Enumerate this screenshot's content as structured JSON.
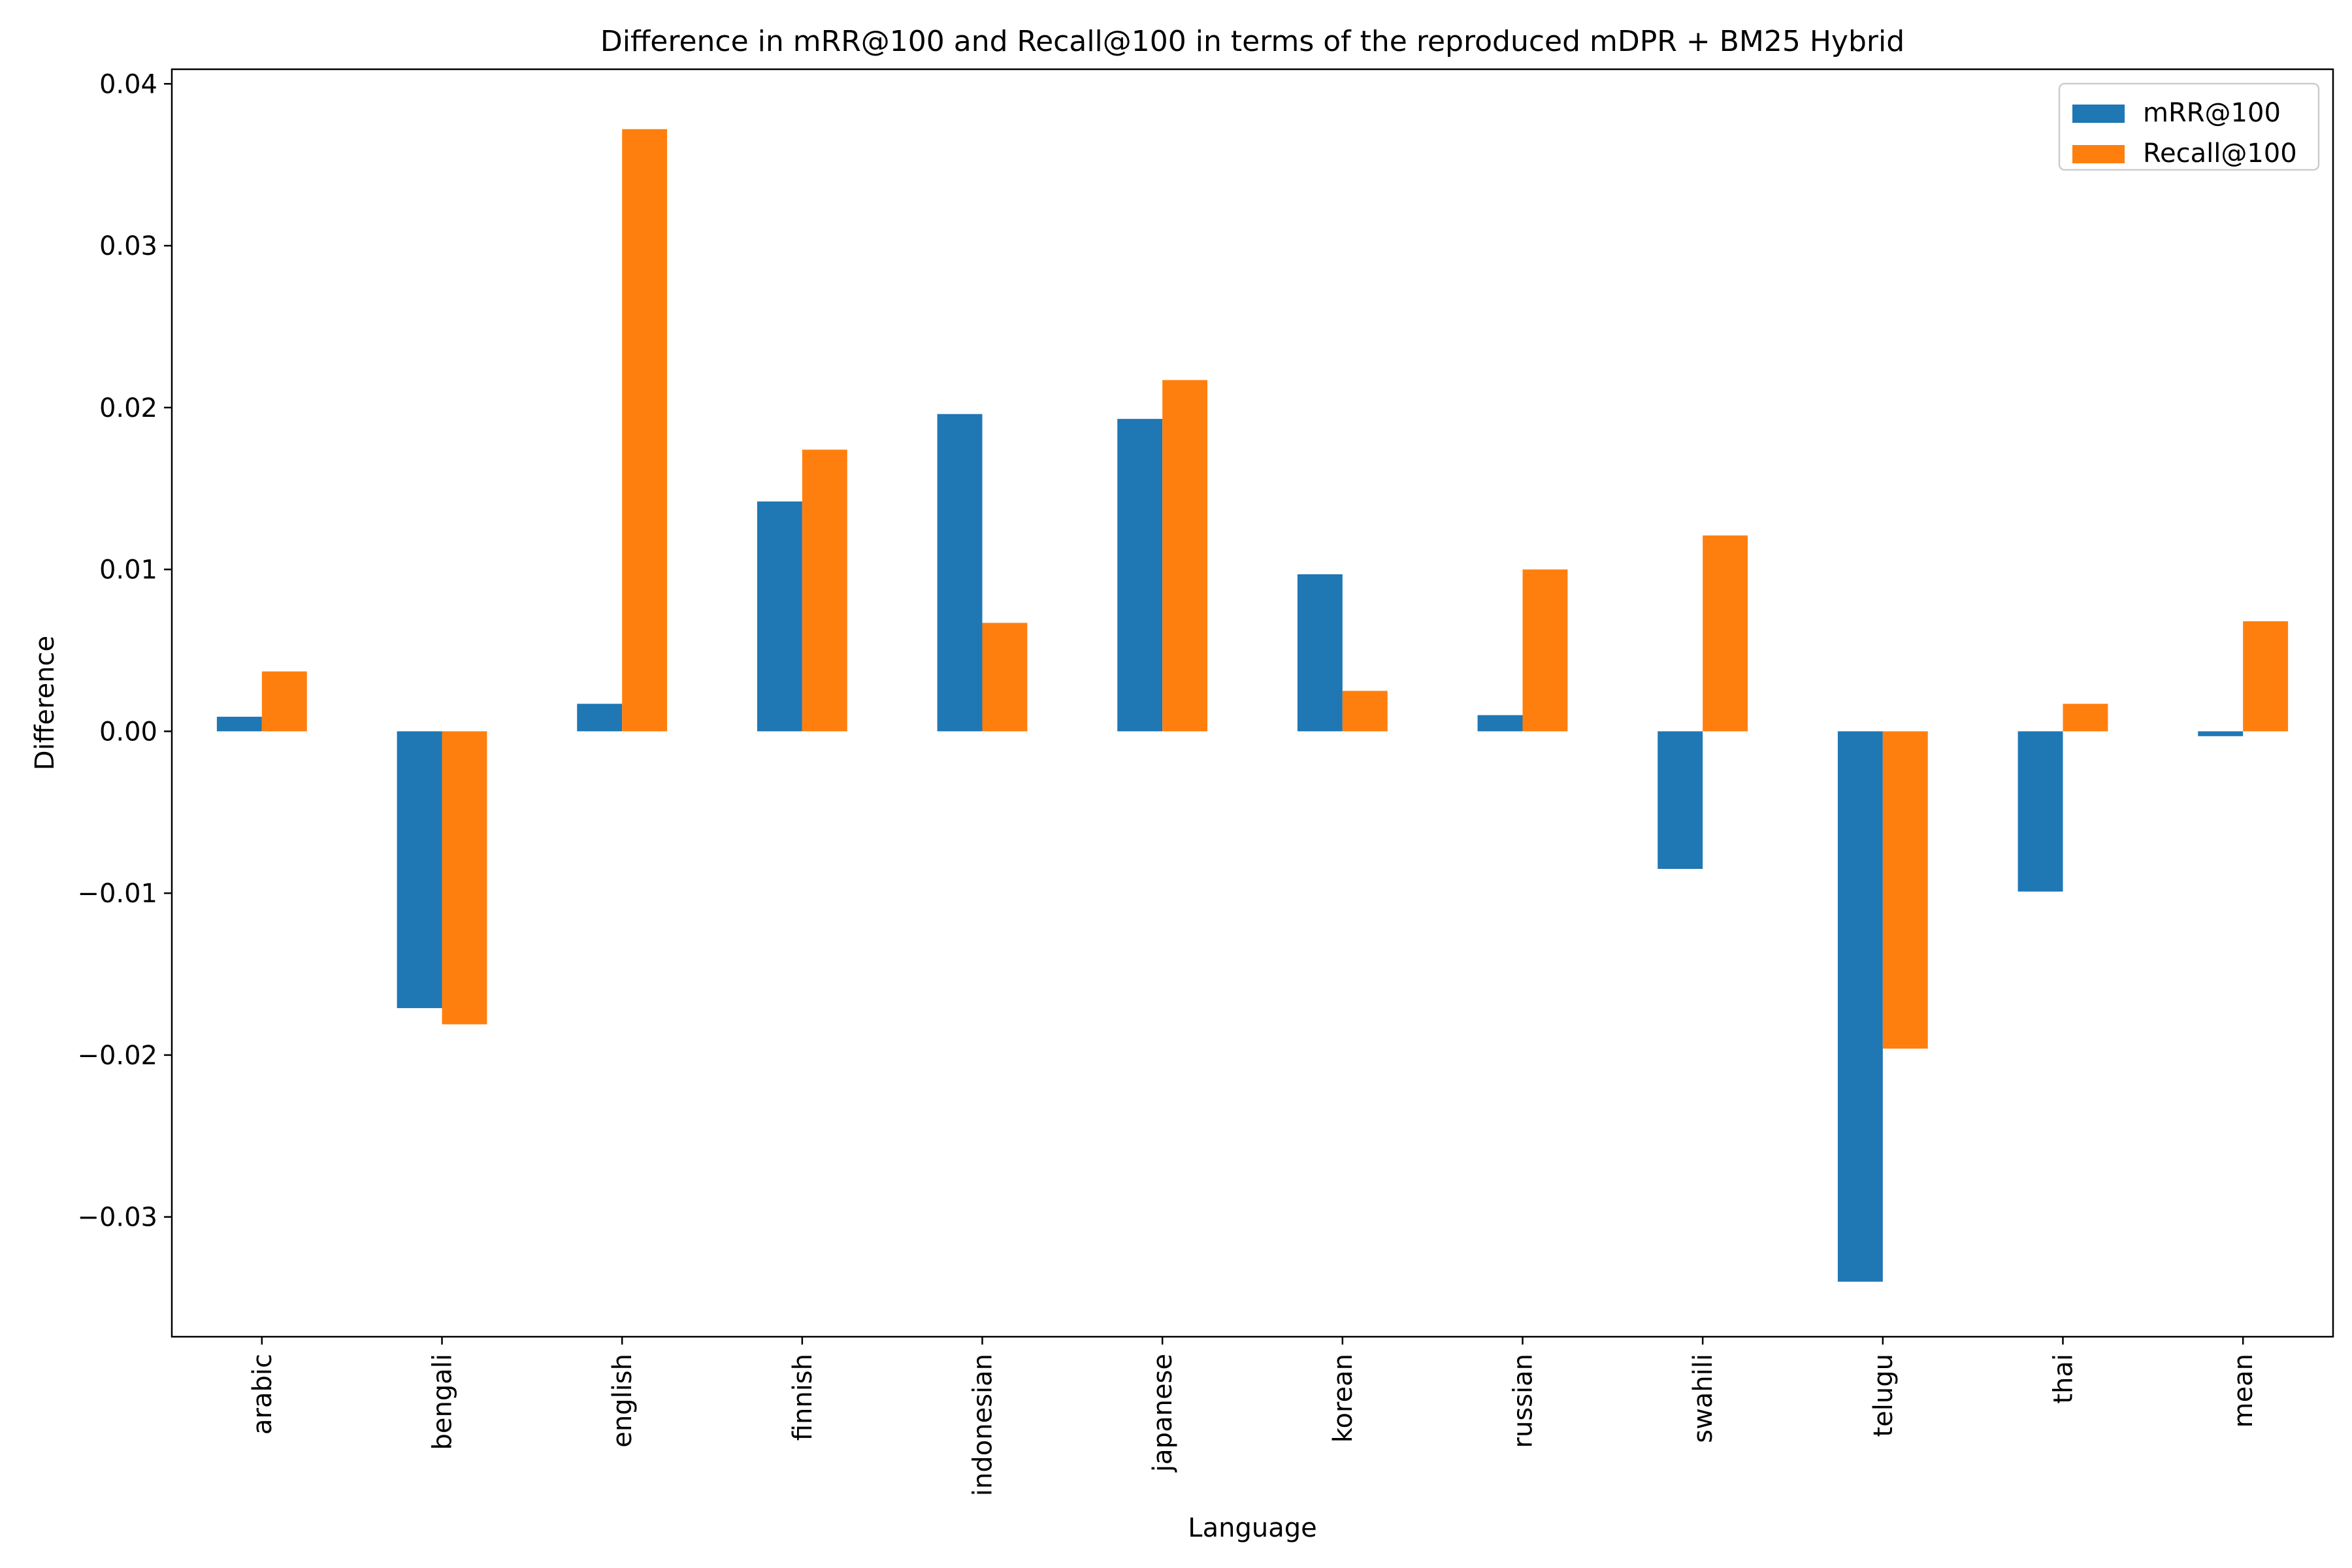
{
  "chart_data": {
    "type": "bar",
    "title": "Difference in mRR@100 and Recall@100 in terms of the reproduced mDPR + BM25 Hybrid",
    "xlabel": "Language",
    "ylabel": "Difference",
    "categories": [
      "arabic",
      "bengali",
      "english",
      "finnish",
      "indonesian",
      "japanese",
      "korean",
      "russian",
      "swahili",
      "telugu",
      "thai",
      "mean"
    ],
    "series": [
      {
        "name": "mRR@100",
        "color": "#1f77b4",
        "values": [
          0.0009,
          -0.0171,
          0.0017,
          0.0142,
          0.0196,
          0.0193,
          0.0097,
          0.001,
          -0.0085,
          -0.034,
          -0.0099,
          -0.0003
        ]
      },
      {
        "name": "Recall@100",
        "color": "#ff7f0e",
        "values": [
          0.0037,
          -0.0181,
          0.0372,
          0.0174,
          0.0067,
          0.0217,
          0.0025,
          0.01,
          0.0121,
          -0.0196,
          0.0017,
          0.0068
        ]
      }
    ],
    "ylim": [
      -0.0374,
      0.0409
    ],
    "yticks": [
      -0.03,
      -0.02,
      -0.01,
      0.0,
      0.01,
      0.02,
      0.03,
      0.04
    ],
    "ytick_labels": [
      "−0.03",
      "−0.02",
      "−0.01",
      "0.00",
      "0.01",
      "0.02",
      "0.03",
      "0.04"
    ],
    "grid": false,
    "legend_position": "top-right"
  }
}
